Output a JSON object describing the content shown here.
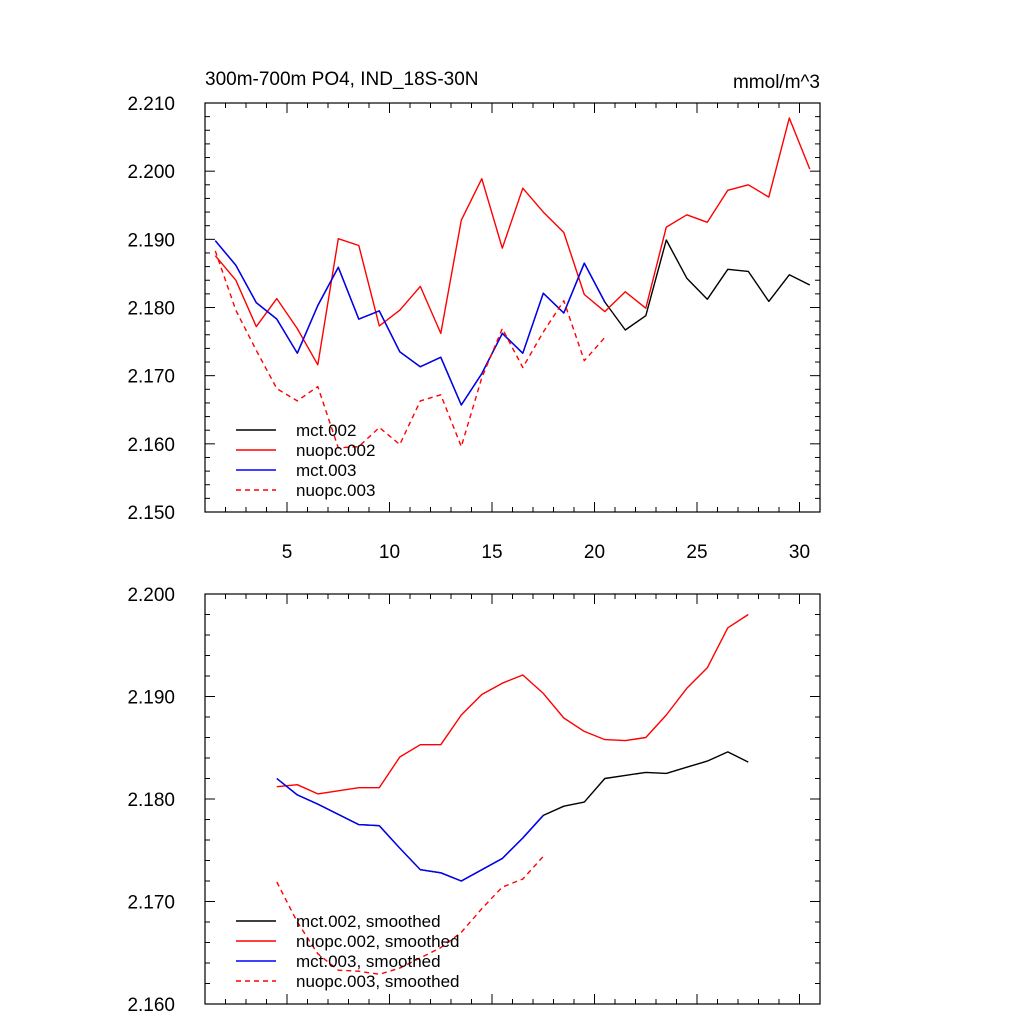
{
  "chart_data": [
    {
      "type": "line",
      "title": "300m-700m PO4, IND_18S-30N",
      "units": "mmol/m^3",
      "xlim": [
        1,
        31
      ],
      "ylim": [
        2.15,
        2.21
      ],
      "xticks": [
        {
          "value": 5,
          "label": "5"
        },
        {
          "value": 10,
          "label": "10"
        },
        {
          "value": 15,
          "label": "15"
        },
        {
          "value": 20,
          "label": "20"
        },
        {
          "value": 25,
          "label": "25"
        },
        {
          "value": 30,
          "label": "30"
        }
      ],
      "yticks": [
        {
          "value": 2.15,
          "label": "2.150"
        },
        {
          "value": 2.16,
          "label": "2.160"
        },
        {
          "value": 2.17,
          "label": "2.170"
        },
        {
          "value": 2.18,
          "label": "2.180"
        },
        {
          "value": 2.19,
          "label": "2.190"
        },
        {
          "value": 2.2,
          "label": "2.200"
        },
        {
          "value": 2.21,
          "label": "2.210"
        }
      ],
      "legend_position": "bottom-left",
      "series": [
        {
          "name": "mct.002",
          "color": "#000000",
          "dash": "solid",
          "x": [
            1.5,
            2.5,
            3.5,
            4.5,
            5.5,
            6.5,
            7.5,
            8.5,
            9.5,
            10.5,
            11.5,
            12.5,
            13.5,
            14.5,
            15.5,
            16.5,
            17.5,
            18.5,
            19.5,
            20.5,
            21.5,
            22.5,
            23.5,
            24.5,
            25.5,
            26.5,
            27.5,
            28.5,
            29.5,
            30.5
          ],
          "values": [
            2.1898,
            2.1862,
            2.1807,
            2.1783,
            2.1733,
            2.1803,
            2.1859,
            2.1783,
            2.1795,
            2.1735,
            2.1713,
            2.1727,
            2.1657,
            2.1703,
            2.1762,
            2.1733,
            2.1821,
            2.1792,
            2.1865,
            2.1808,
            2.1767,
            2.1788,
            2.1899,
            2.1843,
            2.1812,
            2.1856,
            2.1853,
            2.1809,
            2.1848,
            2.1833
          ]
        },
        {
          "name": "nuopc.002",
          "color": "#ff0000",
          "dash": "solid",
          "x": [
            1.5,
            2.5,
            3.5,
            4.5,
            5.5,
            6.5,
            7.5,
            8.5,
            9.5,
            10.5,
            11.5,
            12.5,
            13.5,
            14.5,
            15.5,
            16.5,
            17.5,
            18.5,
            19.5,
            20.5,
            21.5,
            22.5,
            23.5,
            24.5,
            25.5,
            26.5,
            27.5,
            28.5,
            29.5,
            30.5
          ],
          "values": [
            2.1876,
            2.184,
            2.1772,
            2.1813,
            2.1769,
            2.1716,
            2.1901,
            2.1891,
            2.1773,
            2.1796,
            2.1831,
            2.1762,
            2.1928,
            2.1989,
            2.1887,
            2.1975,
            2.194,
            2.191,
            2.1819,
            2.1794,
            2.1823,
            2.1799,
            2.1918,
            2.1936,
            2.1925,
            2.1972,
            2.198,
            2.1962,
            2.2078,
            2.2003
          ]
        },
        {
          "name": "mct.003",
          "color": "#0000ff",
          "dash": "solid",
          "x": [
            1.5,
            2.5,
            3.5,
            4.5,
            5.5,
            6.5,
            7.5,
            8.5,
            9.5,
            10.5,
            11.5,
            12.5,
            13.5,
            14.5,
            15.5,
            16.5,
            17.5,
            18.5,
            19.5,
            20.5
          ],
          "values": [
            2.1898,
            2.1862,
            2.1807,
            2.1783,
            2.1733,
            2.1803,
            2.1859,
            2.1783,
            2.1795,
            2.1735,
            2.1713,
            2.1727,
            2.1657,
            2.1703,
            2.1762,
            2.1733,
            2.1821,
            2.1792,
            2.1865,
            2.1808
          ]
        },
        {
          "name": "nuopc.003",
          "color": "#ff0000",
          "dash": "dashed",
          "x": [
            1.5,
            2.5,
            3.5,
            4.5,
            5.5,
            6.5,
            7.5,
            8.5,
            9.5,
            10.5,
            11.5,
            12.5,
            13.5,
            14.5,
            15.5,
            16.5,
            17.5,
            18.5,
            19.5,
            20.5
          ],
          "values": [
            2.1883,
            2.1796,
            2.1737,
            2.1681,
            2.1663,
            2.1684,
            2.1594,
            2.1596,
            2.1624,
            2.1599,
            2.1663,
            2.1672,
            2.1596,
            2.1697,
            2.1769,
            2.1712,
            2.1764,
            2.181,
            2.1722,
            2.1756
          ]
        }
      ]
    },
    {
      "type": "line",
      "title": "",
      "xlim": [
        1,
        31
      ],
      "ylim": [
        2.16,
        2.2
      ],
      "xticks": [
        {
          "value": 5,
          "label": ""
        },
        {
          "value": 10,
          "label": ""
        },
        {
          "value": 15,
          "label": ""
        },
        {
          "value": 20,
          "label": ""
        },
        {
          "value": 25,
          "label": ""
        },
        {
          "value": 30,
          "label": ""
        }
      ],
      "yticks": [
        {
          "value": 2.16,
          "label": "2.160"
        },
        {
          "value": 2.17,
          "label": "2.170"
        },
        {
          "value": 2.18,
          "label": "2.180"
        },
        {
          "value": 2.19,
          "label": "2.190"
        },
        {
          "value": 2.2,
          "label": "2.200"
        }
      ],
      "legend_position": "bottom-left",
      "series": [
        {
          "name": "mct.002, smoothed",
          "color": "#000000",
          "dash": "solid",
          "x": [
            4.5,
            5.5,
            6.5,
            7.5,
            8.5,
            9.5,
            10.5,
            11.5,
            12.5,
            13.5,
            14.5,
            15.5,
            16.5,
            17.5,
            18.5,
            19.5,
            20.5,
            21.5,
            22.5,
            23.5,
            24.5,
            25.5,
            26.5,
            27.5
          ],
          "values": [
            2.182,
            2.1804,
            2.1795,
            2.1785,
            2.1775,
            2.1774,
            2.1752,
            2.1731,
            2.1728,
            2.172,
            2.1731,
            2.1742,
            2.1762,
            2.1784,
            2.1793,
            2.1797,
            2.182,
            2.1823,
            2.1826,
            2.1825,
            2.1831,
            2.1837,
            2.1846,
            2.1836
          ]
        },
        {
          "name": "nuopc.002, smoothed",
          "color": "#ff0000",
          "dash": "solid",
          "x": [
            4.5,
            5.5,
            6.5,
            7.5,
            8.5,
            9.5,
            10.5,
            11.5,
            12.5,
            13.5,
            14.5,
            15.5,
            16.5,
            17.5,
            18.5,
            19.5,
            20.5,
            21.5,
            22.5,
            23.5,
            24.5,
            25.5,
            26.5,
            27.5
          ],
          "values": [
            2.1812,
            2.1814,
            2.1805,
            2.1808,
            2.1811,
            2.1811,
            2.1841,
            2.1853,
            2.1853,
            2.1882,
            2.1902,
            2.1913,
            2.1921,
            2.1903,
            2.1879,
            2.1866,
            2.1858,
            2.1857,
            2.186,
            2.1882,
            2.1908,
            2.1928,
            2.1967,
            2.198
          ]
        },
        {
          "name": "mct.003, smoothed",
          "color": "#0000ff",
          "dash": "solid",
          "x": [
            4.5,
            5.5,
            6.5,
            7.5,
            8.5,
            9.5,
            10.5,
            11.5,
            12.5,
            13.5,
            14.5,
            15.5,
            16.5,
            17.5
          ],
          "values": [
            2.182,
            2.1804,
            2.1795,
            2.1785,
            2.1775,
            2.1774,
            2.1752,
            2.1731,
            2.1728,
            2.172,
            2.1731,
            2.1742,
            2.1762,
            2.1784
          ]
        },
        {
          "name": "nuopc.003, smoothed",
          "color": "#ff0000",
          "dash": "dashed",
          "x": [
            4.5,
            5.5,
            6.5,
            7.5,
            8.5,
            9.5,
            10.5,
            11.5,
            12.5,
            13.5,
            14.5,
            15.5,
            16.5,
            17.5
          ],
          "values": [
            2.1719,
            2.168,
            2.1649,
            2.1633,
            2.1632,
            2.1629,
            2.1635,
            2.1645,
            2.1655,
            2.167,
            2.1693,
            2.1714,
            2.1722,
            2.1744
          ]
        }
      ]
    }
  ]
}
